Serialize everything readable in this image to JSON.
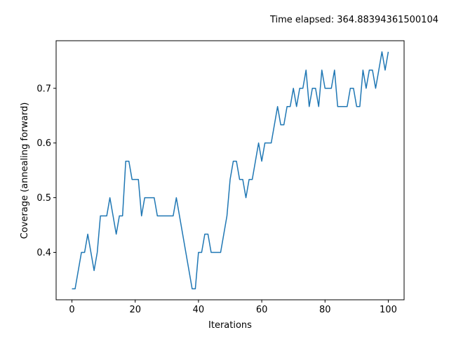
{
  "chart_data": {
    "type": "line",
    "title": "Time elapsed: 364.88394361500104",
    "xlabel": "Iterations",
    "ylabel": "Coverage (annealing forward)",
    "xlim": [
      -5,
      105
    ],
    "ylim": [
      0.3133,
      0.787
    ],
    "xticks": [
      0,
      20,
      40,
      60,
      80,
      100
    ],
    "yticks": [
      0.4,
      0.5,
      0.6,
      0.7
    ],
    "xtick_labels": [
      "0",
      "20",
      "40",
      "60",
      "80",
      "100"
    ],
    "ytick_labels": [
      "0.4",
      "0.5",
      "0.6",
      "0.7"
    ],
    "grid": false,
    "series": [
      {
        "name": "coverage",
        "color": "#1f77b4",
        "x": [
          0,
          1,
          2,
          3,
          4,
          5,
          6,
          7,
          8,
          9,
          10,
          11,
          12,
          13,
          14,
          15,
          16,
          17,
          18,
          19,
          20,
          21,
          22,
          23,
          24,
          25,
          26,
          27,
          28,
          29,
          30,
          31,
          32,
          33,
          34,
          35,
          36,
          37,
          38,
          39,
          40,
          41,
          42,
          43,
          44,
          45,
          46,
          47,
          48,
          49,
          50,
          51,
          52,
          53,
          54,
          55,
          56,
          57,
          58,
          59,
          60,
          61,
          62,
          63,
          64,
          65,
          66,
          67,
          68,
          69,
          70,
          71,
          72,
          73,
          74,
          75,
          76,
          77,
          78,
          79,
          80,
          81,
          82,
          83,
          84,
          85,
          86,
          87,
          88,
          89,
          90,
          91,
          92,
          93,
          94,
          95,
          96,
          97,
          98,
          99,
          100
        ],
        "values": [
          0.3333,
          0.3333,
          0.3667,
          0.4,
          0.4,
          0.4333,
          0.4,
          0.3667,
          0.4,
          0.4667,
          0.4667,
          0.4667,
          0.5,
          0.4667,
          0.4333,
          0.4667,
          0.4667,
          0.5667,
          0.5667,
          0.5333,
          0.5333,
          0.5333,
          0.4667,
          0.5,
          0.5,
          0.5,
          0.5,
          0.4667,
          0.4667,
          0.4667,
          0.4667,
          0.4667,
          0.4667,
          0.5,
          0.4667,
          0.4333,
          0.4,
          0.3667,
          0.3333,
          0.3333,
          0.4,
          0.4,
          0.4333,
          0.4333,
          0.4,
          0.4,
          0.4,
          0.4,
          0.4333,
          0.4667,
          0.5333,
          0.5667,
          0.5667,
          0.5333,
          0.5333,
          0.5,
          0.5333,
          0.5333,
          0.5667,
          0.6,
          0.5667,
          0.6,
          0.6,
          0.6,
          0.6333,
          0.6667,
          0.6333,
          0.6333,
          0.6667,
          0.6667,
          0.7,
          0.6667,
          0.7,
          0.7,
          0.7333,
          0.6667,
          0.7,
          0.7,
          0.6667,
          0.7333,
          0.7,
          0.7,
          0.7,
          0.7333,
          0.6667,
          0.6667,
          0.6667,
          0.6667,
          0.7,
          0.7,
          0.6667,
          0.6667,
          0.7333,
          0.7,
          0.7333,
          0.7333,
          0.7,
          0.7333,
          0.7667,
          0.7333,
          0.7667
        ]
      }
    ]
  }
}
